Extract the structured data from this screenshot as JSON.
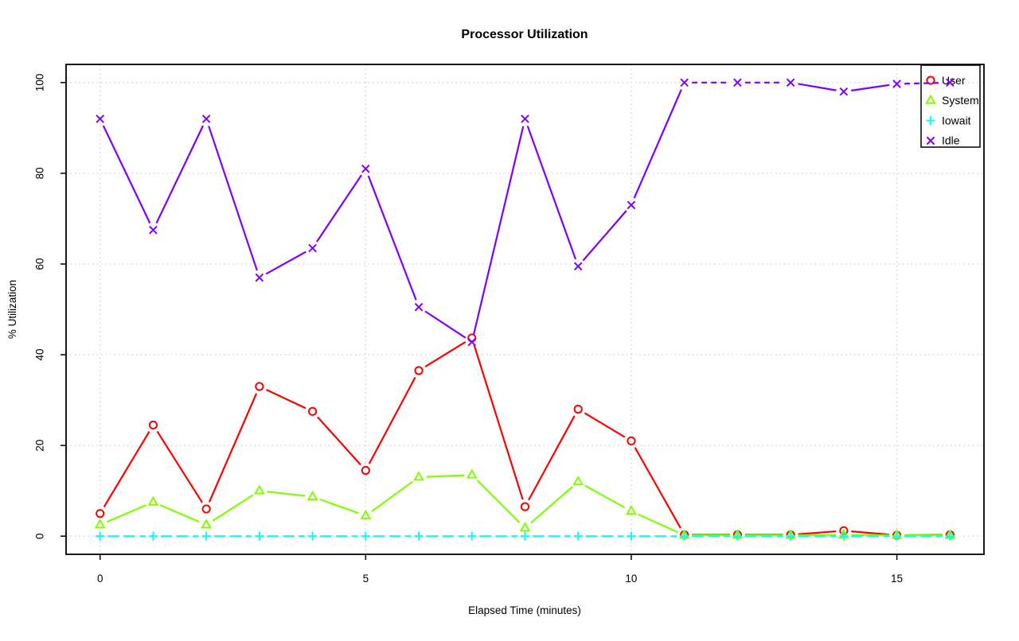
{
  "chart_data": {
    "type": "line",
    "title": "Processor Utilization",
    "xlabel": "Elapsed Time (minutes)",
    "ylabel": "% Utilization",
    "x": [
      0,
      1,
      2,
      3,
      4,
      5,
      6,
      7,
      8,
      9,
      10,
      11,
      12,
      13,
      14,
      15,
      16
    ],
    "xlim": [
      0,
      16
    ],
    "ylim": [
      0,
      100
    ],
    "x_ticks": [
      0,
      5,
      10,
      15
    ],
    "y_ticks": [
      0,
      20,
      40,
      60,
      80,
      100
    ],
    "grid": true,
    "grid_style": "dotted-lightgray",
    "legend_position": "top-right",
    "legend_transparent": true,
    "series": [
      {
        "name": "User",
        "color": "#FF0000",
        "marker": "circle",
        "line_style": "solid",
        "values": [
          5,
          24.5,
          6,
          33,
          27.5,
          14.5,
          36.5,
          43.7,
          6.5,
          28,
          21,
          0.3,
          0.3,
          0.3,
          1.2,
          0.2,
          0.3
        ]
      },
      {
        "name": "System",
        "color": "#80FF00",
        "marker": "triangle",
        "line_style": "solid",
        "values": [
          2.5,
          7.5,
          2.5,
          10,
          8.7,
          4.5,
          13,
          13.5,
          1.8,
          12,
          5.5,
          0.2,
          0.2,
          0.2,
          0.3,
          0.2,
          0.2
        ]
      },
      {
        "name": "Iowait",
        "color": "#00FFFF",
        "marker": "plus",
        "line_style": "longdash",
        "values": [
          0,
          0,
          0,
          0,
          0,
          0,
          0,
          0,
          0,
          0,
          0,
          0,
          0,
          0,
          0,
          0,
          0
        ]
      },
      {
        "name": "Idle",
        "color": "#8000FF",
        "marker": "x",
        "line_style": "solid",
        "dash_at_ymax": true,
        "values": [
          92,
          67.5,
          92,
          57,
          63.5,
          81,
          50.5,
          42.8,
          92,
          59.5,
          73,
          100,
          100,
          100,
          98,
          99.7,
          100
        ]
      }
    ]
  }
}
